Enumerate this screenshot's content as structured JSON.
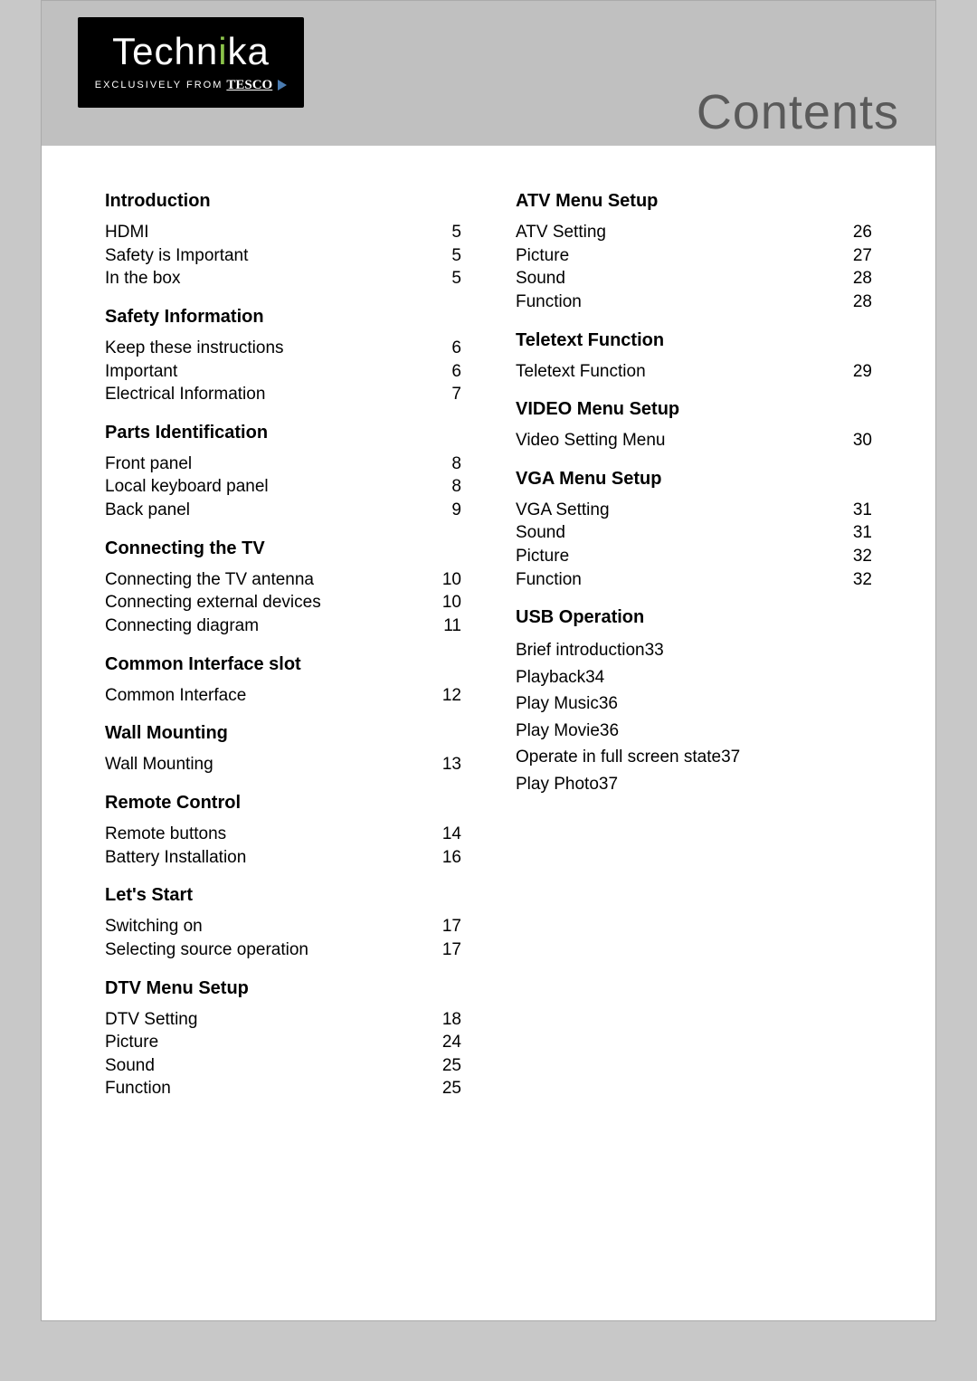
{
  "logo": {
    "brand_pre": "Techn",
    "brand_i": "i",
    "brand_post": "ka",
    "sub_prefix": "EXCLUSIVELY FROM",
    "sub_brand": "TESCO"
  },
  "title": "Contents",
  "left": {
    "sections": [
      {
        "heading": "Introduction",
        "items": [
          {
            "label": "HDMI",
            "page": "5"
          },
          {
            "label": "Safety is Important",
            "page": "5"
          },
          {
            "label": "In the box",
            "page": "5"
          }
        ]
      },
      {
        "heading": "Safety Information",
        "items": [
          {
            "label": "Keep these instructions",
            "page": "6"
          },
          {
            "label": "Important",
            "page": "6"
          },
          {
            "label": "Electrical  Information",
            "page": "7"
          }
        ]
      },
      {
        "heading": "Parts Identification",
        "items": [
          {
            "label": "Front panel",
            "page": "8"
          },
          {
            "label": "Local keyboard panel",
            "page": "8"
          },
          {
            "label": "Back panel",
            "page": "9"
          }
        ]
      },
      {
        "heading": "Connecting the TV",
        "items": [
          {
            "label": "Connecting the TV antenna",
            "page": "10"
          },
          {
            "label": "Connecting external devices",
            "page": "10"
          },
          {
            "label": "Connecting diagram",
            "page": "11"
          }
        ]
      },
      {
        "heading": "Common Interface slot",
        "items": [
          {
            "label": "Common Interface",
            "page": "12"
          }
        ]
      },
      {
        "heading": "Wall Mounting",
        "items": [
          {
            "label": "Wall Mounting",
            "page": "13"
          }
        ]
      },
      {
        "heading": "Remote Control",
        "items": [
          {
            "label": "Remote buttons",
            "page": "14"
          },
          {
            "label": "Battery Installation",
            "page": "16"
          }
        ]
      },
      {
        "heading": "Let's Start",
        "items": [
          {
            "label": "Switching on",
            "page": "17"
          },
          {
            "label": "Selecting source operation",
            "page": "17"
          }
        ]
      },
      {
        "heading": "DTV Menu Setup",
        "items": [
          {
            "label": "DTV Setting",
            "page": "18"
          },
          {
            "label": "Picture",
            "page": "24"
          },
          {
            "label": "Sound",
            "page": "25"
          },
          {
            "label": "Function",
            "page": "25"
          }
        ]
      }
    ]
  },
  "right": {
    "sections": [
      {
        "heading": "ATV Menu Setup",
        "items": [
          {
            "label": "ATV Setting",
            "page": "26"
          },
          {
            "label": "Picture",
            "page": "27"
          },
          {
            "label": "Sound",
            "page": "28"
          },
          {
            "label": "Function",
            "page": "28"
          }
        ]
      },
      {
        "heading": "Teletext Function",
        "items": [
          {
            "label": "Teletext Function",
            "page": "29"
          }
        ]
      },
      {
        "heading": "VIDEO Menu Setup",
        "items": [
          {
            "label": "Video Setting Menu",
            "page": "30"
          }
        ]
      },
      {
        "heading": "VGA Menu Setup",
        "items": [
          {
            "label": "VGA Setting",
            "page": "31"
          },
          {
            "label": "Sound",
            "page": "31"
          },
          {
            "label": "Picture",
            "page": "32"
          },
          {
            "label": "Function",
            "page": "32"
          }
        ]
      }
    ],
    "usb_heading": "USB Operation",
    "usb_items": [
      "Brief introduction33",
      "Playback34",
      "Play Music36",
      "Play Movie36",
      "Operate in full screen state37",
      "Play Photo37"
    ]
  },
  "styling": {
    "page_bg": "#c8c8c8",
    "paper_bg": "#ffffff",
    "band_bg": "#c0c0c0",
    "logo_bg": "#000000",
    "logo_accent": "#8bc34a",
    "title_color": "#5a5a5a",
    "text_color": "#000000",
    "heading_fontsize": 20,
    "body_fontsize": 19,
    "title_fontsize": 54
  }
}
